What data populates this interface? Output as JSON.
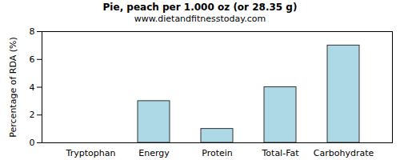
{
  "chart_data": {
    "type": "bar",
    "title": "Pie, peach per 1.000 oz (or 28.35 g)",
    "subtitle": "www.dietandfitnesstoday.com",
    "y_label": "Percentage of RDA (%)",
    "categories": [
      "Tryptophan",
      "Energy",
      "Protein",
      "Total-Fat",
      "Carbohydrate"
    ],
    "values": [
      0,
      3,
      1,
      4,
      7
    ],
    "color": "#add8e6",
    "ylim": [
      0,
      8
    ],
    "yticks": [
      0,
      2,
      4,
      6,
      8
    ],
    "grid": false
  }
}
